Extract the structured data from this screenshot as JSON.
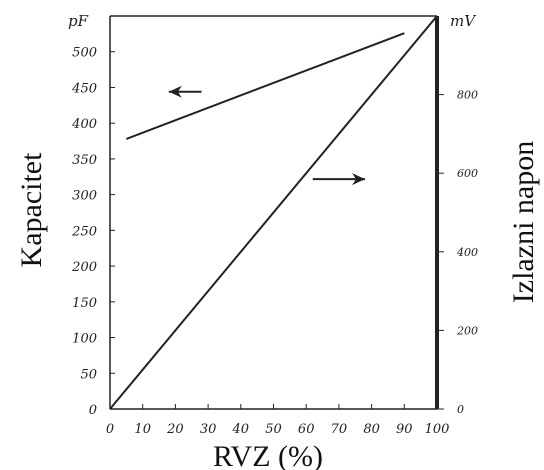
{
  "chart_data": {
    "type": "line",
    "xlabel": "RVZ (%)",
    "ylabel_left": "Kapacitet",
    "ylabel_right": "Izlazni napon",
    "unit_left": "pF",
    "unit_right": "mV",
    "xlim": [
      0,
      100
    ],
    "ylim_left": [
      0,
      550
    ],
    "ylim_right": [
      0,
      1000
    ],
    "x_ticks": [
      0,
      10,
      20,
      30,
      40,
      50,
      60,
      70,
      80,
      90,
      100
    ],
    "y_ticks_left": [
      0,
      50,
      100,
      150,
      200,
      250,
      300,
      350,
      400,
      450,
      500
    ],
    "y_ticks_right": [
      0,
      200,
      400,
      600,
      800
    ],
    "grid": false,
    "series": [
      {
        "axis": "left",
        "x": [
          5,
          90
        ],
        "y": [
          378,
          526
        ]
      },
      {
        "axis": "right",
        "x": [
          0,
          100
        ],
        "y": [
          0,
          1000
        ]
      }
    ],
    "annotations": [
      {
        "type": "arrow",
        "direction": "left",
        "refers_to": 0,
        "x": [
          18,
          28
        ],
        "y": 444
      },
      {
        "type": "arrow",
        "direction": "right",
        "refers_to": 1,
        "x": [
          62,
          78
        ],
        "y": 585
      }
    ]
  }
}
